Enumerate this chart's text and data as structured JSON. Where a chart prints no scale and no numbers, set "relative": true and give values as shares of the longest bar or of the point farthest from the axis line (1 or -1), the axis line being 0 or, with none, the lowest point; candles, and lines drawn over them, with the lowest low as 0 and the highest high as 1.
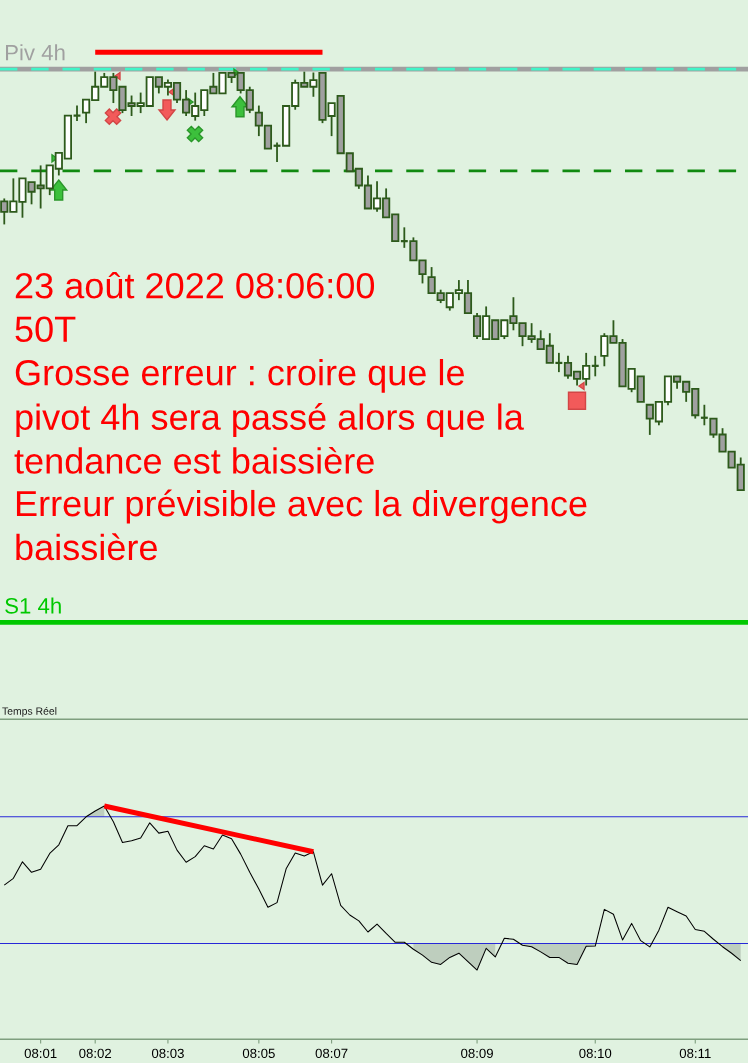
{
  "chart_data": [
    {
      "type": "candlestick",
      "relative": true,
      "color": "#2d5a1b",
      "categories": [
        null,
        null,
        null,
        null,
        null,
        null,
        null,
        null,
        null,
        null,
        null,
        null,
        null,
        null,
        null,
        null,
        null,
        null,
        null,
        null,
        null,
        null,
        null,
        null,
        null,
        null,
        null,
        null,
        null,
        null,
        null,
        null,
        null,
        null,
        null,
        null,
        null,
        null,
        null,
        null,
        null,
        null,
        null,
        null,
        null,
        null,
        null,
        null,
        null,
        null,
        null,
        null,
        null,
        null,
        null,
        null,
        null,
        null,
        null,
        null,
        null,
        null,
        null,
        null,
        null,
        null,
        null,
        null,
        null,
        null,
        null,
        null,
        null,
        null,
        null,
        null,
        null,
        null,
        null,
        null,
        null,
        null
      ],
      "ohlc": [
        [
          0.69,
          0.697,
          0.635,
          0.665
        ],
        [
          0.665,
          0.745,
          0.665,
          0.69
        ],
        [
          0.689,
          0.745,
          0.651,
          0.745
        ],
        [
          0.736,
          0.736,
          0.683,
          0.713
        ],
        [
          0.728,
          0.776,
          0.673,
          0.721
        ],
        [
          0.721,
          0.776,
          0.705,
          0.776
        ],
        [
          0.768,
          0.806,
          0.752,
          0.806
        ],
        [
          0.792,
          0.895,
          0.792,
          0.895
        ],
        [
          0.895,
          0.919,
          0.882,
          0.895
        ],
        [
          0.902,
          0.933,
          0.877,
          0.933
        ],
        [
          0.932,
          1,
          0.932,
          0.964
        ],
        [
          0.964,
          0.997,
          0.964,
          0.987
        ],
        [
          0.987,
          0.997,
          0.925,
          0.956
        ],
        [
          0.964,
          0.964,
          0.901,
          0.908
        ],
        [
          0.925,
          0.943,
          0.894,
          0.918
        ],
        [
          0.918,
          0.95,
          0.901,
          0.925
        ],
        [
          0.918,
          0.987,
          0.918,
          0.987
        ],
        [
          0.987,
          0.987,
          0.948,
          0.964
        ],
        [
          0.964,
          0.981,
          0.943,
          0.973
        ],
        [
          0.973,
          0.973,
          0.925,
          0.933
        ],
        [
          0.933,
          0.956,
          0.894,
          0.902
        ],
        [
          0.894,
          0.95,
          0.883,
          0.918
        ],
        [
          0.908,
          0.956,
          0.894,
          0.956
        ],
        [
          0.964,
          0.997,
          0.948,
          0.948
        ],
        [
          0.948,
          0.997,
          0.948,
          0.997
        ],
        [
          0.997,
          0.997,
          0.973,
          0.987
        ],
        [
          0.997,
          0.997,
          0.948,
          0.956
        ],
        [
          0.956,
          0.964,
          0.901,
          0.909
        ],
        [
          0.902,
          0.919,
          0.846,
          0.871
        ],
        [
          0.871,
          0.871,
          0.816,
          0.816
        ],
        [
          0.823,
          0.831,
          0.784,
          0.823
        ],
        [
          0.823,
          0.918,
          0.823,
          0.918
        ],
        [
          0.918,
          0.981,
          0.909,
          0.973
        ],
        [
          0.973,
          1,
          0.964,
          0.964
        ],
        [
          0.964,
          0.998,
          0.94,
          0.98
        ],
        [
          0.997,
          0.997,
          0.877,
          0.885
        ],
        [
          0.894,
          0.925,
          0.846,
          0.925
        ],
        [
          0.942,
          0.942,
          0.805,
          0.805
        ],
        [
          0.805,
          0.805,
          0.762,
          0.762
        ],
        [
          0.768,
          0.768,
          0.72,
          0.728
        ],
        [
          0.728,
          0.752,
          0.673,
          0.673
        ],
        [
          0.673,
          0.738,
          0.665,
          0.697
        ],
        [
          0.697,
          0.721,
          0.652,
          0.652
        ],
        [
          0.659,
          0.659,
          0.595,
          0.595
        ],
        [
          0.595,
          0.628,
          0.579,
          0.595
        ],
        [
          0.595,
          0.604,
          0.549,
          0.549
        ],
        [
          0.549,
          0.549,
          0.494,
          0.516
        ],
        [
          0.509,
          0.533,
          0.471,
          0.471
        ],
        [
          0.471,
          0.479,
          0.447,
          0.454
        ],
        [
          0.437,
          0.471,
          0.429,
          0.471
        ],
        [
          0.471,
          0.502,
          0.454,
          0.478
        ],
        [
          0.471,
          0.502,
          0.423,
          0.423
        ],
        [
          0.416,
          0.423,
          0.361,
          0.368
        ],
        [
          0.361,
          0.439,
          0.361,
          0.416
        ],
        [
          0.406,
          0.406,
          0.361,
          0.361
        ],
        [
          0.368,
          0.406,
          0.361,
          0.406
        ],
        [
          0.416,
          0.461,
          0.382,
          0.399
        ],
        [
          0.399,
          0.399,
          0.344,
          0.368
        ],
        [
          0.368,
          0.399,
          0.352,
          0.361
        ],
        [
          0.361,
          0.382,
          0.337,
          0.337
        ],
        [
          0.345,
          0.375,
          0.304,
          0.304
        ],
        [
          0.304,
          0.328,
          0.282,
          0.304
        ],
        [
          0.304,
          0.321,
          0.266,
          0.274
        ],
        [
          0.283,
          0.283,
          0.25,
          0.266
        ],
        [
          0.266,
          0.328,
          0.25,
          0.297
        ],
        [
          0.297,
          0.321,
          0.272,
          0.297
        ],
        [
          0.321,
          0.375,
          0.296,
          0.368
        ],
        [
          0.368,
          0.406,
          0.352,
          0.352
        ],
        [
          0.352,
          0.361,
          0.248,
          0.248
        ],
        [
          0.242,
          0.29,
          0.234,
          0.29
        ],
        [
          0.272,
          0.272,
          0.211,
          0.211
        ],
        [
          0.204,
          0.204,
          0.132,
          0.171
        ],
        [
          0.164,
          0.211,
          0.155,
          0.211
        ],
        [
          0.211,
          0.272,
          0.203,
          0.272
        ],
        [
          0.272,
          0.272,
          0.242,
          0.259
        ],
        [
          0.259,
          0.259,
          0.211,
          0.235
        ],
        [
          0.242,
          0.242,
          0.171,
          0.179
        ],
        [
          0.173,
          0.204,
          0.155,
          0.173
        ],
        [
          0.171,
          0.171,
          0.125,
          0.133
        ],
        [
          0.133,
          0.148,
          0.092,
          0.092
        ],
        [
          0.092,
          0.092,
          0.054,
          0.054
        ],
        [
          0.061,
          0.078,
          0,
          0
        ]
      ],
      "colors": [
        "#a0a0a0",
        "#ffffff",
        "#ffffff",
        "#a0a0a0",
        "#a0a0a0",
        "#ffffff",
        "#ffffff",
        "#ffffff",
        "#2d5a1b",
        "#ffffff",
        "#ffffff",
        "#ffffff",
        "#a0a0a0",
        "#a0a0a0",
        "#a0a0a0",
        "#ffffff",
        "#ffffff",
        "#a0a0a0",
        "#ffffff",
        "#a0a0a0",
        "#a0a0a0",
        "#ffffff",
        "#ffffff",
        "#a0a0a0",
        "#ffffff",
        "#a0a0a0",
        "#a0a0a0",
        "#a0a0a0",
        "#a0a0a0",
        "#a0a0a0",
        "#2d5a1b",
        "#ffffff",
        "#ffffff",
        "#a0a0a0",
        "#ffffff",
        "#a0a0a0",
        "#ffffff",
        "#a0a0a0",
        "#a0a0a0",
        "#a0a0a0",
        "#a0a0a0",
        "#ffffff",
        "#a0a0a0",
        "#a0a0a0",
        "#2d5a1b",
        "#a0a0a0",
        "#a0a0a0",
        "#a0a0a0",
        "#a0a0a0",
        "#ffffff",
        "#ffffff",
        "#a0a0a0",
        "#a0a0a0",
        "#ffffff",
        "#a0a0a0",
        "#ffffff",
        "#a0a0a0",
        "#a0a0a0",
        "#a0a0a0",
        "#a0a0a0",
        "#a0a0a0",
        "#2d5a1b",
        "#a0a0a0",
        "#a0a0a0",
        "#ffffff",
        "#2d5a1b",
        "#ffffff",
        "#a0a0a0",
        "#a0a0a0",
        "#ffffff",
        "#a0a0a0",
        "#a0a0a0",
        "#ffffff",
        "#ffffff",
        "#a0a0a0",
        "#a0a0a0",
        "#a0a0a0",
        "#2d5a1b",
        "#a0a0a0",
        "#a0a0a0",
        "#a0a0a0",
        "#a0a0a0"
      ],
      "ref_lines": [
        {
          "axis": "y",
          "value": 1.006,
          "label": "Piv 4h",
          "color": "#a0a0a0",
          "line_style": "solid"
        },
        {
          "axis": "y",
          "value": 1.006,
          "color": "#40f5c8",
          "line_style": "dashed"
        },
        {
          "axis": "y",
          "value": 0.763,
          "color": "#108a10",
          "line_style": "dashed"
        },
        {
          "axis": "y",
          "value": -0.316,
          "label": "S1 4h",
          "color": "#00c800",
          "line_style": "solid"
        }
      ],
      "annotations": [
        "23 août 2022 08:06:00",
        "50T",
        "Grosse erreur : croire que le\npivot 4h sera passé alors que la\ntendance est baissière",
        "Erreur prévisible avec la divergence\nbaissière"
      ]
    },
    {
      "type": "line",
      "relative": true,
      "categories": [
        null,
        null,
        null,
        null,
        "08:01",
        null,
        null,
        null,
        null,
        null,
        "08:02",
        null,
        null,
        null,
        null,
        null,
        null,
        null,
        "08:03",
        null,
        null,
        null,
        null,
        null,
        null,
        null,
        null,
        null,
        "08:05",
        null,
        null,
        null,
        null,
        null,
        null,
        null,
        "08:07",
        null,
        null,
        null,
        null,
        null,
        null,
        null,
        null,
        null,
        null,
        null,
        null,
        null,
        null,
        null,
        "08:09",
        null,
        null,
        null,
        null,
        null,
        null,
        null,
        null,
        null,
        null,
        null,
        null,
        "08:10",
        null,
        null,
        null,
        null,
        null,
        null,
        null,
        null,
        null,
        null,
        "08:11",
        null,
        null,
        null,
        null,
        null
      ],
      "series": [
        {
          "type": "line",
          "color": "#000000",
          "values": [
            0.661,
            0.69,
            0.761,
            0.716,
            0.729,
            0.797,
            0.834,
            0.916,
            0.916,
            0.954,
            0.979,
            1,
            0.933,
            0.844,
            0.851,
            0.863,
            0.928,
            0.884,
            0.892,
            0.811,
            0.759,
            0.783,
            0.83,
            0.816,
            0.876,
            0.86,
            0.794,
            0.716,
            0.644,
            0.566,
            0.586,
            0.731,
            0.799,
            0.786,
            0.804,
            0.661,
            0.71,
            0.574,
            0.533,
            0.508,
            0.46,
            0.494,
            0.454,
            0.416,
            0.416,
            0.386,
            0.361,
            0.33,
            0.321,
            0.351,
            0.369,
            0.333,
            0.297,
            0.39,
            0.353,
            0.433,
            0.429,
            0.403,
            0.397,
            0.375,
            0.351,
            0.351,
            0.326,
            0.321,
            0.399,
            0.4,
            0.557,
            0.536,
            0.426,
            0.497,
            0.423,
            0.396,
            0.468,
            0.566,
            0.547,
            0.529,
            0.471,
            0.463,
            0.429,
            0.397,
            0.369,
            0.337
          ],
          "lower": [
            null,
            null,
            null,
            null,
            null,
            null,
            null,
            null,
            null,
            0.954,
            0.954,
            0.954,
            null,
            null,
            null,
            null,
            null,
            null,
            null,
            null,
            null,
            null,
            null,
            null,
            null,
            null,
            null,
            null,
            null,
            null,
            null,
            null,
            null,
            null,
            null,
            null,
            null,
            null,
            null,
            null,
            null,
            null,
            null,
            null,
            null,
            0.386,
            0.361,
            0.33,
            0.321,
            0.351,
            0.369,
            0.333,
            0.297,
            0.39,
            0.353,
            null,
            null,
            0.403,
            0.397,
            0.375,
            0.351,
            0.351,
            0.326,
            0.321,
            0.399,
            0.4,
            null,
            null,
            null,
            null,
            null,
            null,
            null,
            null,
            null,
            null,
            null,
            null,
            null,
            0.397,
            0.369,
            0.337
          ],
          "upper": [
            null,
            null,
            null,
            null,
            null,
            null,
            null,
            null,
            null,
            0.954,
            0.979,
            1,
            null,
            null,
            null,
            null,
            null,
            null,
            null,
            null,
            null,
            null,
            null,
            null,
            null,
            null,
            null,
            null,
            null,
            null,
            null,
            null,
            null,
            null,
            null,
            null,
            null,
            null,
            null,
            null,
            null,
            null,
            null,
            null,
            null,
            0.411,
            0.411,
            0.411,
            0.411,
            0.411,
            0.411,
            0.411,
            0.411,
            0.411,
            0.411,
            null,
            null,
            0.411,
            0.411,
            0.411,
            0.411,
            0.411,
            0.411,
            0.411,
            0.411,
            0.411,
            null,
            null,
            null,
            null,
            null,
            null,
            null,
            null,
            null,
            null,
            null,
            null,
            null,
            0.411,
            0.411,
            0.411
          ]
        },
        {
          "type": "line",
          "color": "#ff0000",
          "values": [
            null,
            null,
            null,
            null,
            null,
            null,
            null,
            null,
            null,
            null,
            null,
            1,
            null,
            null,
            null,
            null,
            null,
            null,
            null,
            null,
            null,
            null,
            null,
            null,
            null,
            null,
            null,
            null,
            null,
            null,
            null,
            null,
            null,
            null,
            0.804,
            null,
            null,
            null,
            null,
            null,
            null,
            null,
            null,
            null,
            null,
            null,
            null,
            null,
            null,
            null,
            null,
            null,
            null,
            null,
            null,
            null,
            null,
            null,
            null,
            null,
            null,
            null,
            null,
            null,
            null,
            null,
            null,
            null,
            null,
            null,
            null,
            null,
            null,
            null,
            null,
            null,
            null,
            null,
            null,
            null,
            null,
            null
          ]
        }
      ],
      "ref_lines": [
        {
          "axis": "y",
          "value": 0.954,
          "color": "#2828d8"
        },
        {
          "axis": "y",
          "value": 0.411,
          "color": "#2828d8"
        }
      ],
      "annotations": [
        "Temps Réel"
      ]
    }
  ]
}
